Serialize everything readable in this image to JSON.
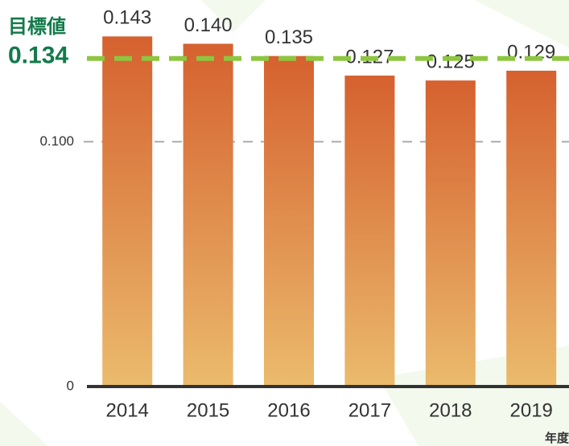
{
  "chart_data": {
    "type": "bar",
    "categories": [
      "2014",
      "2015",
      "2016",
      "2017",
      "2018",
      "2019"
    ],
    "values": [
      0.143,
      0.14,
      0.135,
      0.127,
      0.125,
      0.129
    ],
    "value_labels": [
      "0.143",
      "0.140",
      "0.135",
      "0.127",
      "0.125",
      "0.129"
    ],
    "color": "#d5612f",
    "color_bottom": "#ebbb6d",
    "ylim": [
      0,
      0.15
    ],
    "yticks": [
      0,
      {
        "value": 0.1,
        "label": "0.100"
      }
    ],
    "grid": true,
    "x_label": "年度",
    "target": {
      "label": "目標値",
      "value": 0.134,
      "value_label": "0.134",
      "color": "#8dc63f"
    }
  }
}
